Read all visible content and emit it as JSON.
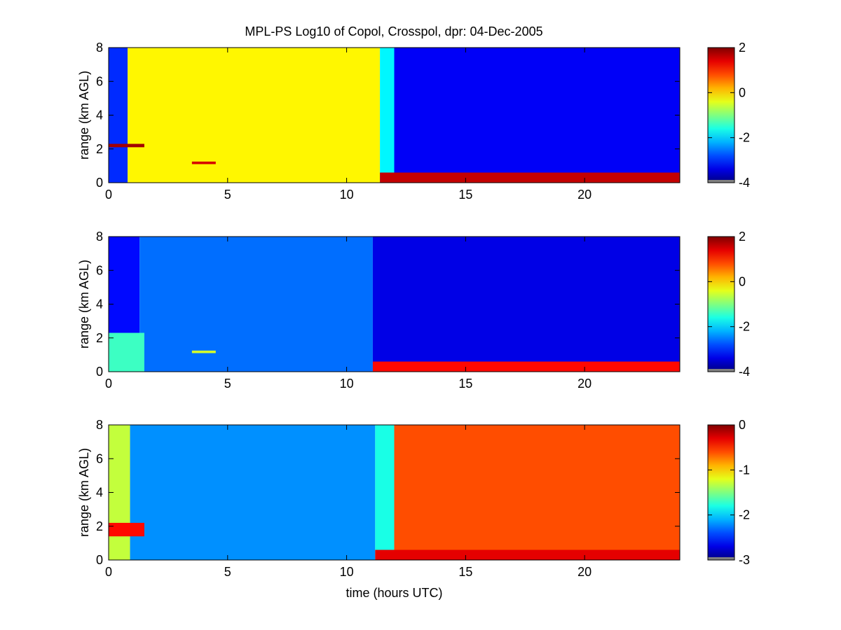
{
  "figure": {
    "title": "MPL-PS Log10 of Copol, Crosspol, dpr: 04-Dec-2005"
  },
  "chart_data": [
    {
      "type": "heatmap",
      "panel": "top",
      "xlabel": "",
      "ylabel": "range (km AGL)",
      "xlim": [
        0,
        24
      ],
      "ylim": [
        0,
        8
      ],
      "xticks": [
        0,
        5,
        10,
        15,
        20
      ],
      "yticks": [
        0,
        2,
        4,
        6,
        8
      ],
      "colorbar": {
        "clim": [
          -4,
          2
        ],
        "ticks": [
          -4,
          -2,
          0,
          2
        ],
        "colormap": "jet"
      },
      "regions": [
        {
          "t": [
            0,
            0.8
          ],
          "z": [
            0,
            8
          ],
          "value": -3.0
        },
        {
          "t": [
            0.8,
            11.4
          ],
          "z": [
            0,
            8
          ],
          "value": -0.2
        },
        {
          "t": [
            11.4,
            12.0
          ],
          "z": [
            0,
            8
          ],
          "value": -1.8
        },
        {
          "t": [
            12.0,
            24
          ],
          "z": [
            0,
            8
          ],
          "value": -3.3
        },
        {
          "t": [
            0,
            1.5
          ],
          "z": [
            2.1,
            2.3
          ],
          "value": 1.8
        },
        {
          "t": [
            3.5,
            4.5
          ],
          "z": [
            1.1,
            1.25
          ],
          "value": 1.5
        },
        {
          "t": [
            11.4,
            24
          ],
          "z": [
            0,
            0.6
          ],
          "value": 1.6
        }
      ]
    },
    {
      "type": "heatmap",
      "panel": "middle",
      "xlabel": "",
      "ylabel": "range (km AGL)",
      "xlim": [
        0,
        24
      ],
      "ylim": [
        0,
        8
      ],
      "xticks": [
        0,
        5,
        10,
        15,
        20
      ],
      "yticks": [
        0,
        2,
        4,
        6,
        8
      ],
      "colorbar": {
        "clim": [
          -4,
          2
        ],
        "ticks": [
          -4,
          -2,
          0,
          2
        ],
        "colormap": "jet"
      },
      "regions": [
        {
          "t": [
            0,
            1.3
          ],
          "z": [
            0,
            8
          ],
          "value": -3.2
        },
        {
          "t": [
            1.3,
            11.1
          ],
          "z": [
            0,
            8
          ],
          "value": -2.6
        },
        {
          "t": [
            11.1,
            24
          ],
          "z": [
            0,
            8
          ],
          "value": -3.4
        },
        {
          "t": [
            0,
            1.5
          ],
          "z": [
            0,
            2.3
          ],
          "value": -1.4
        },
        {
          "t": [
            3.5,
            4.5
          ],
          "z": [
            1.1,
            1.25
          ],
          "value": -0.5
        },
        {
          "t": [
            11.1,
            24
          ],
          "z": [
            0,
            0.6
          ],
          "value": 1.2
        }
      ]
    },
    {
      "type": "heatmap",
      "panel": "bottom",
      "xlabel": "time (hours UTC)",
      "ylabel": "range (km AGL)",
      "xlim": [
        0,
        24
      ],
      "ylim": [
        0,
        8
      ],
      "xticks": [
        0,
        5,
        10,
        15,
        20
      ],
      "yticks": [
        0,
        2,
        4,
        6,
        8
      ],
      "colorbar": {
        "clim": [
          -3,
          0
        ],
        "ticks": [
          -3,
          -2,
          -1,
          0
        ],
        "colormap": "jet"
      },
      "regions": [
        {
          "t": [
            0,
            0.9
          ],
          "z": [
            0,
            8
          ],
          "value": -1.3
        },
        {
          "t": [
            0.9,
            11.2
          ],
          "z": [
            0,
            8
          ],
          "value": -2.2
        },
        {
          "t": [
            11.2,
            12.0
          ],
          "z": [
            0,
            8
          ],
          "value": -1.8
        },
        {
          "t": [
            12.0,
            24
          ],
          "z": [
            0,
            8
          ],
          "value": -0.6
        },
        {
          "t": [
            0,
            1.5
          ],
          "z": [
            1.4,
            2.2
          ],
          "value": -0.4
        },
        {
          "t": [
            11.2,
            24
          ],
          "z": [
            0,
            0.6
          ],
          "value": -0.3
        }
      ]
    }
  ]
}
